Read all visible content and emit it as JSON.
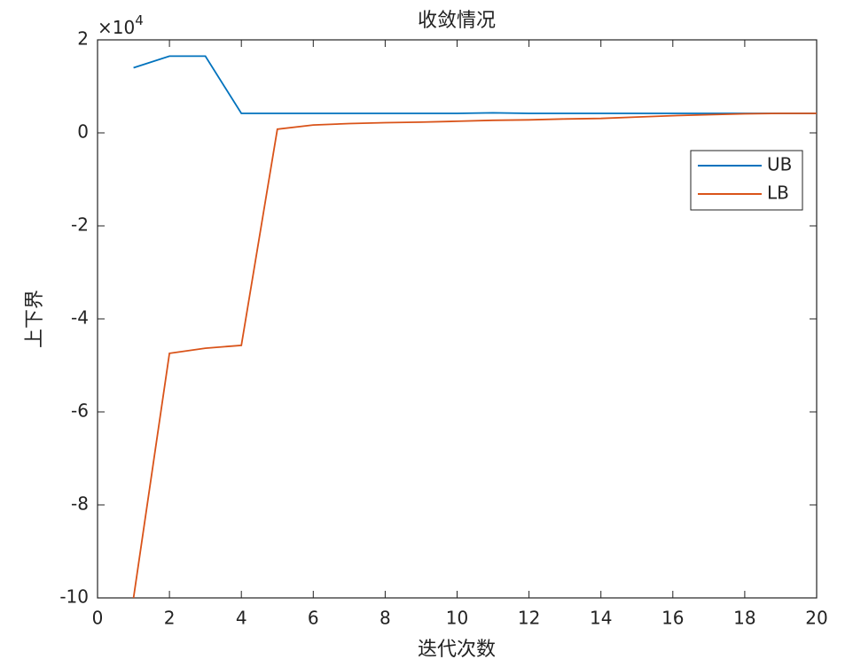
{
  "chart_data": {
    "type": "line",
    "title": "收敛情况",
    "xlabel": "迭代次数",
    "ylabel": "上下界",
    "y_multiplier": {
      "base": "×10",
      "exponent": "4"
    },
    "x": [
      1,
      2,
      3,
      4,
      5,
      6,
      7,
      8,
      9,
      10,
      11,
      12,
      13,
      14,
      15,
      16,
      17,
      18,
      19,
      20
    ],
    "series": [
      {
        "name": "UB",
        "color": "#0072BD",
        "values": [
          1.4,
          1.65,
          1.65,
          0.42,
          0.42,
          0.42,
          0.42,
          0.42,
          0.42,
          0.42,
          0.43,
          0.42,
          0.42,
          0.42,
          0.42,
          0.42,
          0.42,
          0.42,
          0.42,
          0.42
        ]
      },
      {
        "name": "LB",
        "color": "#D95319",
        "values": [
          -10,
          -4.74,
          -4.63,
          -4.57,
          0.08,
          0.17,
          0.2,
          0.22,
          0.23,
          0.25,
          0.27,
          0.28,
          0.3,
          0.31,
          0.34,
          0.37,
          0.39,
          0.41,
          0.42,
          0.42
        ]
      }
    ],
    "xlim": [
      0,
      20
    ],
    "xticks": [
      0,
      2,
      4,
      6,
      8,
      10,
      12,
      14,
      16,
      18,
      20
    ],
    "ylim": [
      -10,
      2
    ],
    "yticks": [
      -10,
      -8,
      -6,
      -4,
      -2,
      0,
      2
    ],
    "grid": false,
    "legend": "northeast"
  }
}
